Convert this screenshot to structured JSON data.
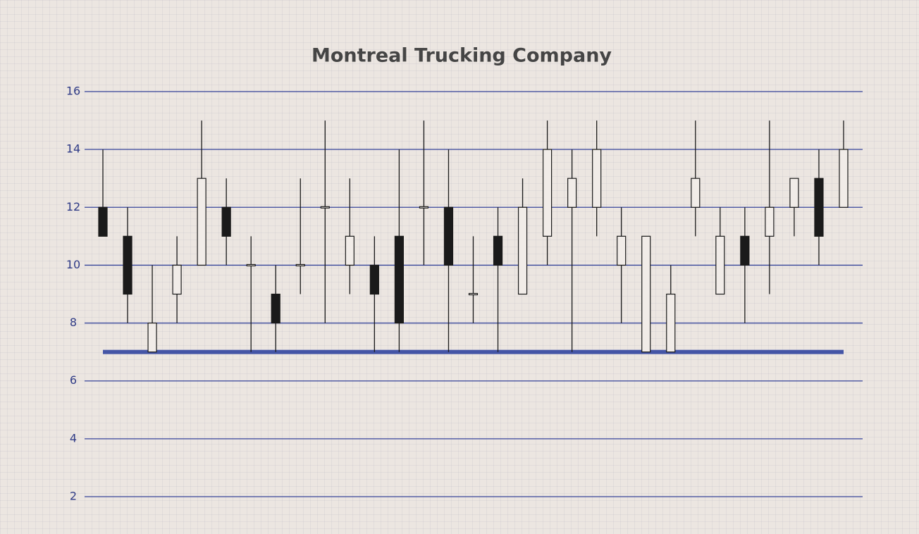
{
  "chart_data": {
    "type": "candlestick",
    "title": "Montreal Trucking Company",
    "open": [
      12,
      11,
      7,
      9,
      10,
      12,
      10,
      9,
      10,
      12,
      10,
      10,
      11,
      12,
      12,
      9,
      11,
      9,
      11,
      12,
      12,
      10,
      7,
      7,
      12,
      9,
      11,
      11,
      12,
      13,
      12
    ],
    "high": [
      14,
      12,
      10,
      11,
      15,
      13,
      11,
      10,
      13,
      15,
      13,
      11,
      14,
      15,
      14,
      11,
      12,
      13,
      15,
      14,
      15,
      12,
      11,
      10,
      15,
      12,
      12,
      15,
      13,
      14,
      15
    ],
    "low": [
      11,
      8,
      7,
      8,
      10,
      10,
      7,
      7,
      9,
      8,
      9,
      7,
      7,
      10,
      7,
      8,
      7,
      9,
      10,
      7,
      11,
      8,
      7,
      7,
      11,
      9,
      8,
      9,
      11,
      10,
      12
    ],
    "close": [
      11,
      9,
      8,
      10,
      13,
      11,
      10,
      8,
      10,
      12,
      11,
      9,
      8,
      12,
      10,
      9,
      10,
      12,
      14,
      13,
      14,
      11,
      11,
      9,
      13,
      11,
      10,
      12,
      13,
      11,
      14
    ],
    "up_color": "#f1ece8",
    "down_color": "#1a1a1a",
    "hline": 7,
    "hline_color": "#4455a6",
    "ylim": [
      2,
      16
    ],
    "yticks": [
      2,
      4,
      6,
      8,
      10,
      12,
      14,
      16
    ],
    "grid": true,
    "grid_color": "#36449a"
  }
}
